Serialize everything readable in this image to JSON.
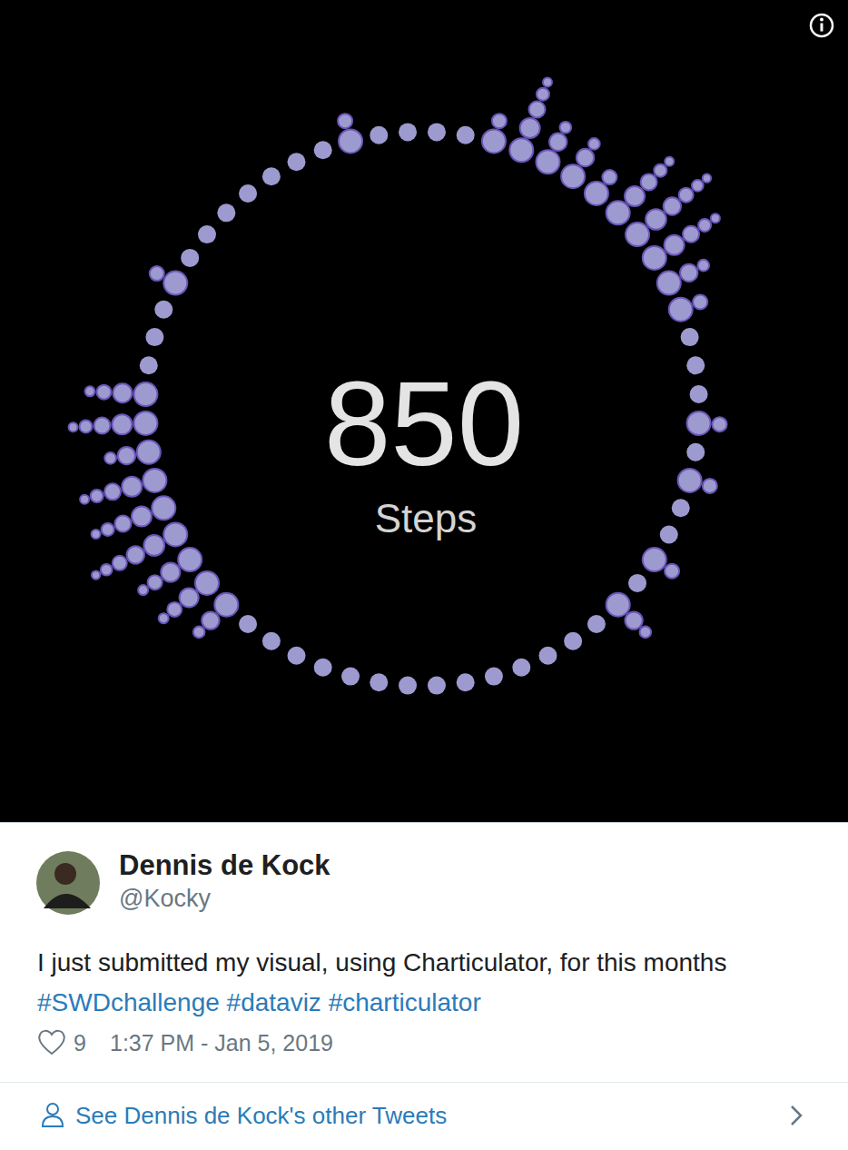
{
  "chart_data": {
    "type": "radial_dot",
    "title": "850",
    "subtitle": "Steps",
    "color": "#9d9ad0",
    "values": [
      1,
      1,
      2,
      5,
      3,
      3,
      2,
      5,
      6,
      5,
      3,
      2,
      1,
      1,
      1,
      2,
      1,
      2,
      1,
      1,
      2,
      1,
      3,
      1,
      1,
      1,
      1,
      1,
      1,
      1,
      1,
      1,
      1,
      1,
      1,
      1,
      1,
      3,
      4,
      4,
      6,
      5,
      5,
      3,
      5,
      4,
      1,
      1,
      1,
      2,
      1,
      1,
      1,
      1,
      1,
      1,
      1,
      2,
      1,
      1
    ]
  },
  "tweet": {
    "author": "Dennis de Kock",
    "handle": "@Kocky",
    "text": "I just submitted my visual, using Charticulator, for this months",
    "hashtags": [
      "#SWDchallenge",
      "#dataviz",
      "#charticulator"
    ],
    "likes": 9,
    "timestamp": "1:37 PM - Jan 5, 2019",
    "footer_link": "See Dennis de Kock's other Tweets"
  }
}
